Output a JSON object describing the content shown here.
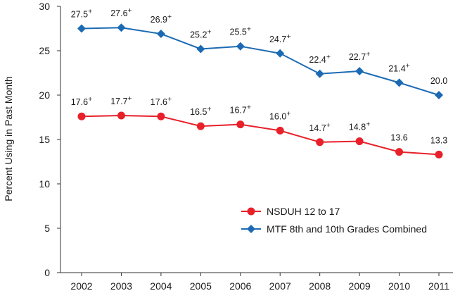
{
  "chart_data": {
    "type": "line",
    "title": "",
    "xlabel": "",
    "ylabel": "Percent Using in Past Month",
    "ylim": [
      0,
      30
    ],
    "yticks": [
      0,
      5,
      10,
      15,
      20,
      25,
      30
    ],
    "categories": [
      "2002",
      "2003",
      "2004",
      "2005",
      "2006",
      "2007",
      "2008",
      "2009",
      "2010",
      "2011"
    ],
    "grid": false,
    "legend_position": "bottom-right",
    "series": [
      {
        "name": "NSDUH 12 to 17",
        "marker": "circle",
        "color": "#e8202a",
        "values": [
          17.6,
          17.7,
          17.6,
          16.5,
          16.7,
          16.0,
          14.7,
          14.8,
          13.6,
          13.3
        ],
        "labels": [
          "17.6",
          "17.7",
          "17.6",
          "16.5",
          "16.7",
          "16.0",
          "14.7",
          "14.8",
          "13.6",
          "13.3"
        ],
        "superscripts": [
          "+",
          "+",
          "+",
          "+",
          "+",
          "+",
          "+",
          "+",
          "",
          ""
        ]
      },
      {
        "name": "MTF 8th and 10th Grades Combined",
        "marker": "diamond",
        "color": "#1b6ab3",
        "values": [
          27.5,
          27.6,
          26.9,
          25.2,
          25.5,
          24.7,
          22.4,
          22.7,
          21.4,
          20.0
        ],
        "labels": [
          "27.5",
          "27.6",
          "26.9",
          "25.2",
          "25.5",
          "24.7",
          "22.4",
          "22.7",
          "21.4",
          "20.0"
        ],
        "superscripts": [
          "+",
          "+",
          "+",
          "+",
          "+",
          "+",
          "+",
          "+",
          "+",
          ""
        ]
      }
    ]
  }
}
